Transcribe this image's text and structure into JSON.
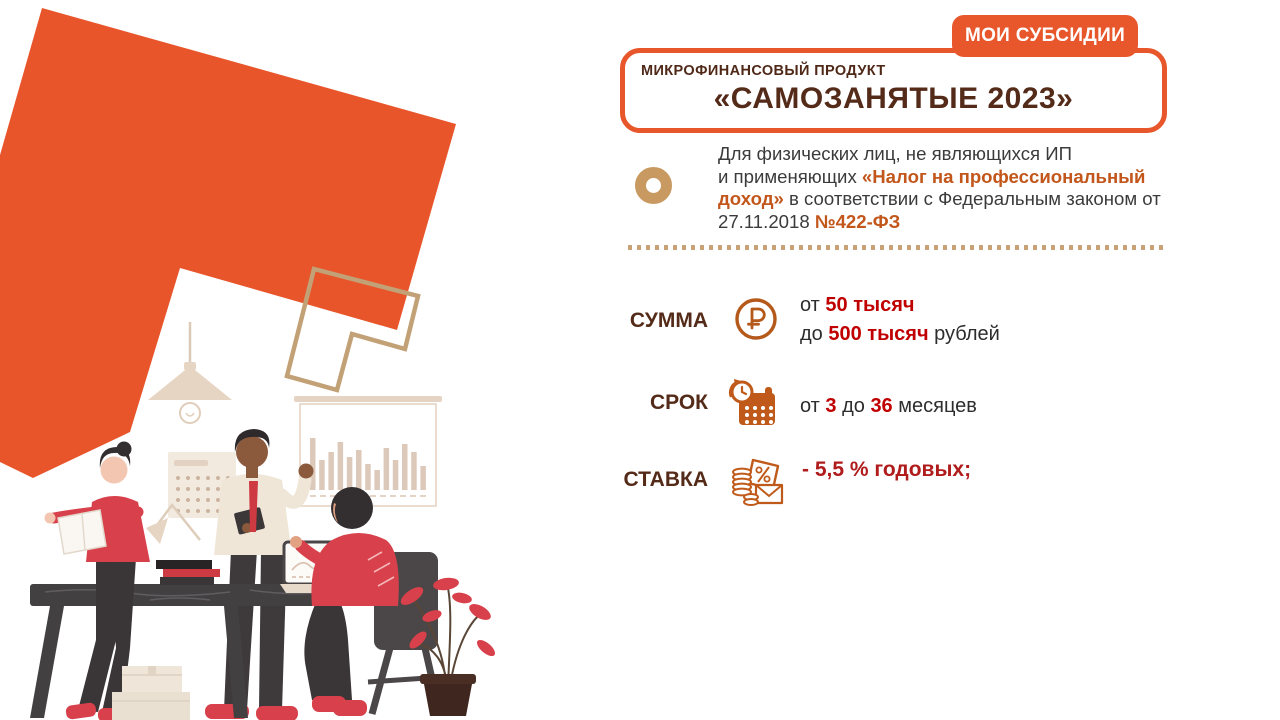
{
  "brand": {
    "badge_label": "МОИ СУБСИДИИ",
    "badge_color": "#E8562B"
  },
  "product": {
    "eyebrow": "МИКРОФИНАНСОВЫЙ ПРОДУКТ",
    "title": "«САМОЗАНЯТЫЕ 2023»"
  },
  "intro": {
    "line1": "Для физических лиц, не являющихся ИП",
    "line2_prefix": "и применяющих ",
    "highlight1": "«Налог на профессиональный доход»",
    "mid": " в соответствии с Федеральным законом от 27.11.2018 ",
    "highlight2": "№422-ФЗ"
  },
  "terms": {
    "sum": {
      "label": "СУММА",
      "icon": "ruble-circle-icon",
      "from_prefix": "от ",
      "from_value": "50 тысяч",
      "to_prefix": "до ",
      "to_value": "500 тысяч",
      "to_suffix": " рублей"
    },
    "term": {
      "label": "СРОК",
      "icon": "calendar-clock-icon",
      "prefix": "от ",
      "value1": "3",
      "middle": " до ",
      "value2": "36",
      "suffix": " месяцев"
    },
    "rate": {
      "label": "СТАВКА",
      "icon": "percent-envelope-coins-icon",
      "value": "- 5,5 % годовых;"
    }
  },
  "colors": {
    "accent_orange": "#E8562B",
    "title_brown": "#542A18",
    "highlight_orange": "#C2561B",
    "value_red": "#C00000",
    "rate_red": "#B01B1B",
    "tan": "#C89A62",
    "text_dark": "#3B3B3B"
  },
  "illustration": {
    "whiteboard_bars": [
      52,
      30,
      38,
      48,
      33,
      40,
      26,
      20,
      42,
      30,
      46,
      38,
      24
    ],
    "calendar_dot_rows": 4,
    "calendar_dot_cols": 6
  }
}
